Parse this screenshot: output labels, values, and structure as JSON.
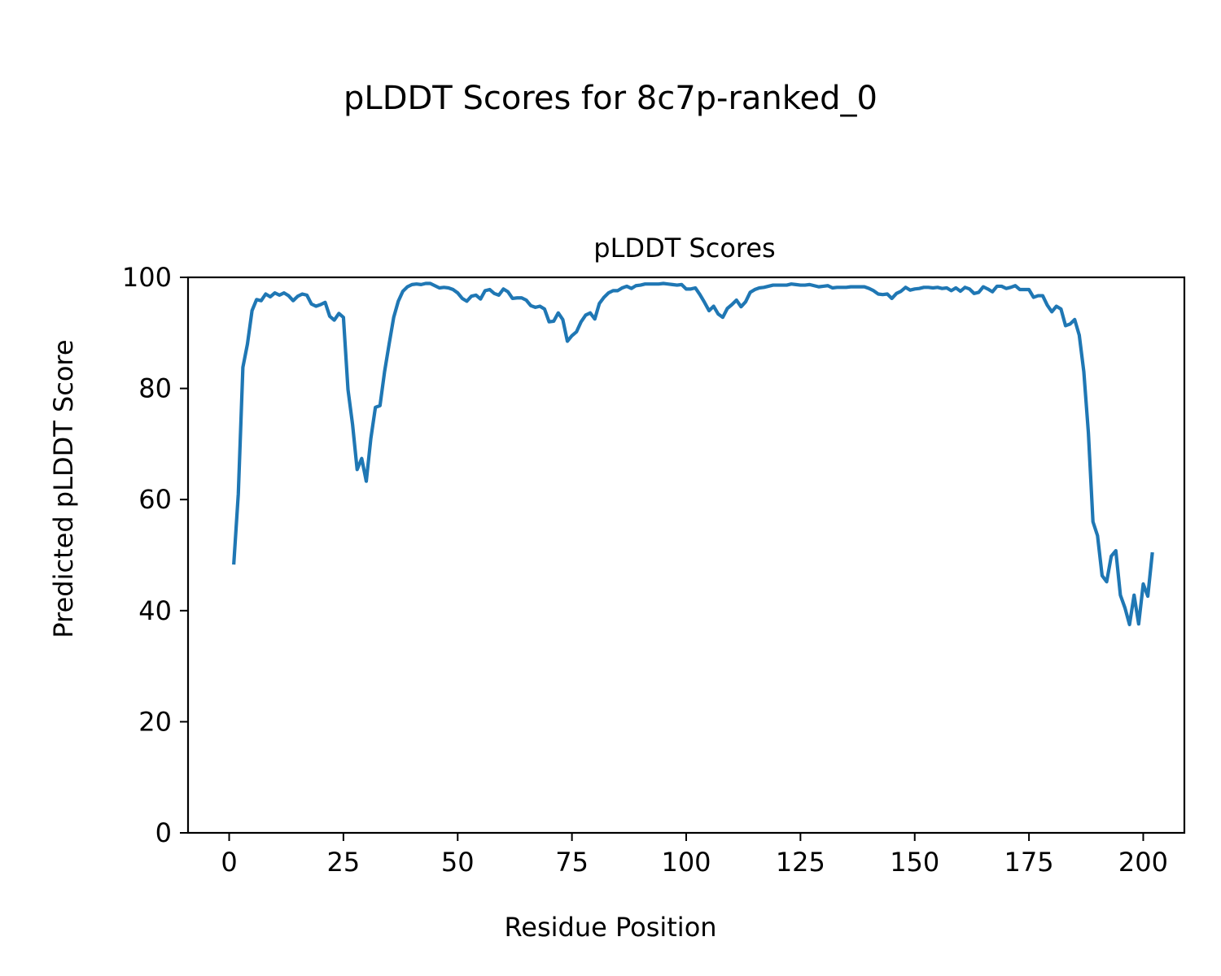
{
  "figure": {
    "title": "pLDDT Scores for 8c7p-ranked_0"
  },
  "chart_data": {
    "type": "line",
    "title": "pLDDT Scores",
    "xlabel": "Residue Position",
    "ylabel": "Predicted pLDDT Score",
    "xlim": [
      -9,
      209
    ],
    "ylim": [
      0,
      100
    ],
    "x_ticks": [
      0,
      25,
      50,
      75,
      100,
      125,
      150,
      175,
      200
    ],
    "y_ticks": [
      0,
      20,
      40,
      60,
      80,
      100
    ],
    "grid": false,
    "legend": "none",
    "series": [
      {
        "color": "#1f77b4",
        "x_start": 1,
        "values": [
          48.3,
          61.0,
          83.8,
          88.0,
          94.0,
          96.0,
          95.8,
          97.0,
          96.5,
          97.2,
          96.8,
          97.2,
          96.7,
          95.8,
          96.6,
          97.0,
          96.8,
          95.2,
          94.8,
          95.1,
          95.5,
          93.0,
          92.3,
          93.5,
          92.8,
          79.8,
          73.5,
          65.4,
          67.4,
          63.3,
          71.0,
          76.6,
          76.9,
          83.0,
          88.0,
          92.8,
          95.7,
          97.5,
          98.3,
          98.7,
          98.8,
          98.7,
          98.9,
          98.9,
          98.5,
          98.1,
          98.2,
          98.1,
          97.8,
          97.2,
          96.2,
          95.7,
          96.6,
          96.8,
          96.1,
          97.6,
          97.8,
          97.1,
          96.8,
          97.9,
          97.4,
          96.2,
          96.3,
          96.3,
          95.9,
          94.9,
          94.6,
          94.8,
          94.3,
          92.0,
          92.1,
          93.6,
          92.4,
          88.5,
          89.5,
          90.2,
          92.0,
          93.2,
          93.6,
          92.5,
          95.3,
          96.4,
          97.2,
          97.6,
          97.6,
          98.1,
          98.4,
          98.0,
          98.5,
          98.6,
          98.8,
          98.8,
          98.8,
          98.8,
          98.9,
          98.8,
          98.7,
          98.6,
          98.7,
          97.9,
          97.9,
          98.1,
          96.9,
          95.5,
          94.0,
          94.8,
          93.4,
          92.8,
          94.4,
          95.1,
          95.9,
          94.7,
          95.6,
          97.3,
          97.8,
          98.1,
          98.2,
          98.4,
          98.6,
          98.6,
          98.6,
          98.6,
          98.8,
          98.7,
          98.6,
          98.6,
          98.7,
          98.5,
          98.3,
          98.4,
          98.5,
          98.1,
          98.2,
          98.2,
          98.2,
          98.3,
          98.3,
          98.3,
          98.3,
          98.0,
          97.6,
          97.0,
          96.9,
          97.0,
          96.2,
          97.1,
          97.5,
          98.2,
          97.7,
          97.9,
          98.0,
          98.2,
          98.2,
          98.1,
          98.2,
          98.0,
          98.1,
          97.6,
          98.1,
          97.5,
          98.2,
          97.9,
          97.1,
          97.3,
          98.3,
          97.9,
          97.4,
          98.4,
          98.4,
          98.0,
          98.2,
          98.5,
          97.8,
          97.8,
          97.8,
          96.4,
          96.7,
          96.7,
          95.0,
          93.8,
          94.8,
          94.3,
          91.3,
          91.6,
          92.4,
          89.6,
          83.0,
          72.0,
          56.0,
          53.5,
          46.3,
          45.2,
          49.8,
          50.8,
          42.8,
          40.5,
          37.5,
          42.8,
          37.6,
          44.8,
          42.6,
          50.5
        ]
      }
    ]
  }
}
